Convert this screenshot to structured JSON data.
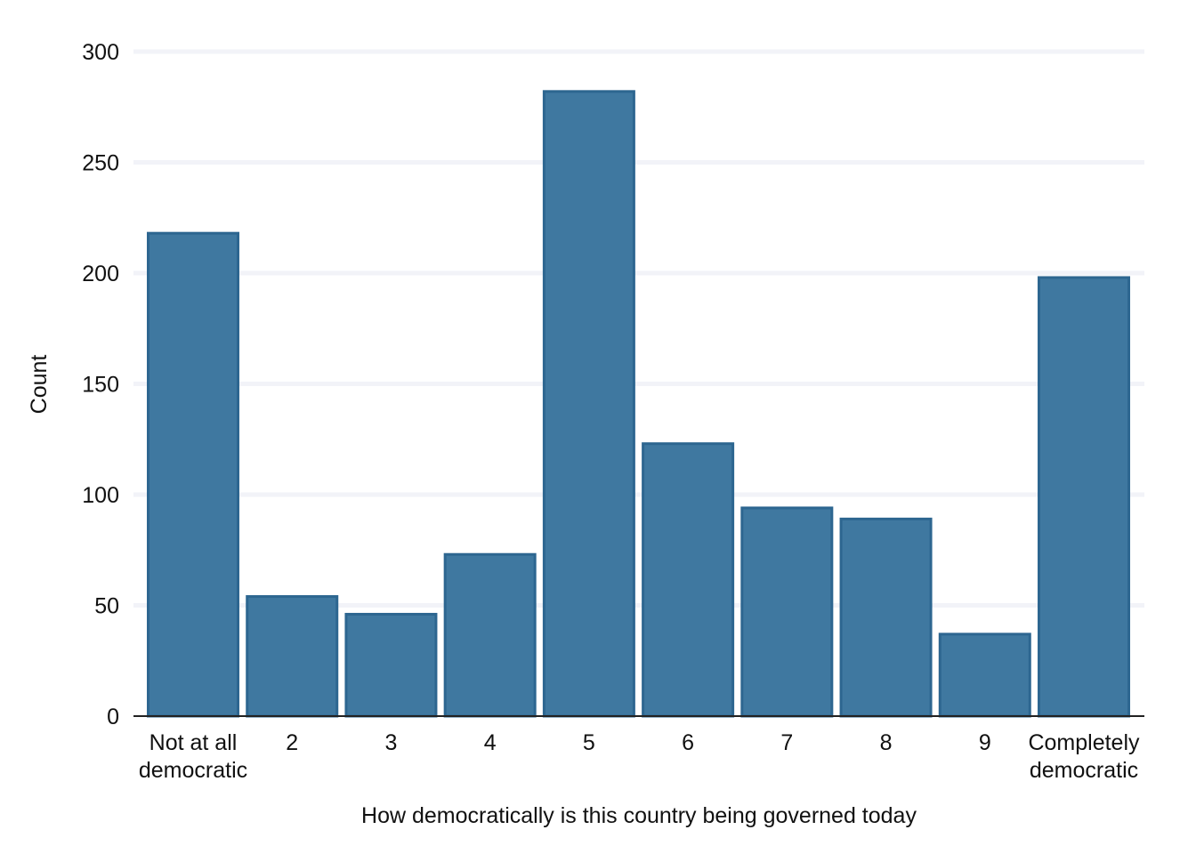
{
  "chart_data": {
    "type": "bar",
    "title": "",
    "xlabel": "How democratically is this country being governed today",
    "ylabel": "Count",
    "categories": [
      [
        "Not at all",
        "democratic"
      ],
      [
        "2"
      ],
      [
        "3"
      ],
      [
        "4"
      ],
      [
        "5"
      ],
      [
        "6"
      ],
      [
        "7"
      ],
      [
        "8"
      ],
      [
        "9"
      ],
      [
        "Completely",
        "democratic"
      ]
    ],
    "values": [
      218,
      54,
      46,
      73,
      282,
      123,
      94,
      89,
      37,
      198
    ],
    "ylim": [
      0,
      300
    ],
    "yticks": [
      0,
      50,
      100,
      150,
      200,
      250,
      300
    ],
    "grid": true,
    "colors": {
      "bar_fill": "#3f78a0",
      "bar_edge": "#2d6690",
      "grid": "#f2f3f8",
      "axis": "#222222"
    }
  }
}
